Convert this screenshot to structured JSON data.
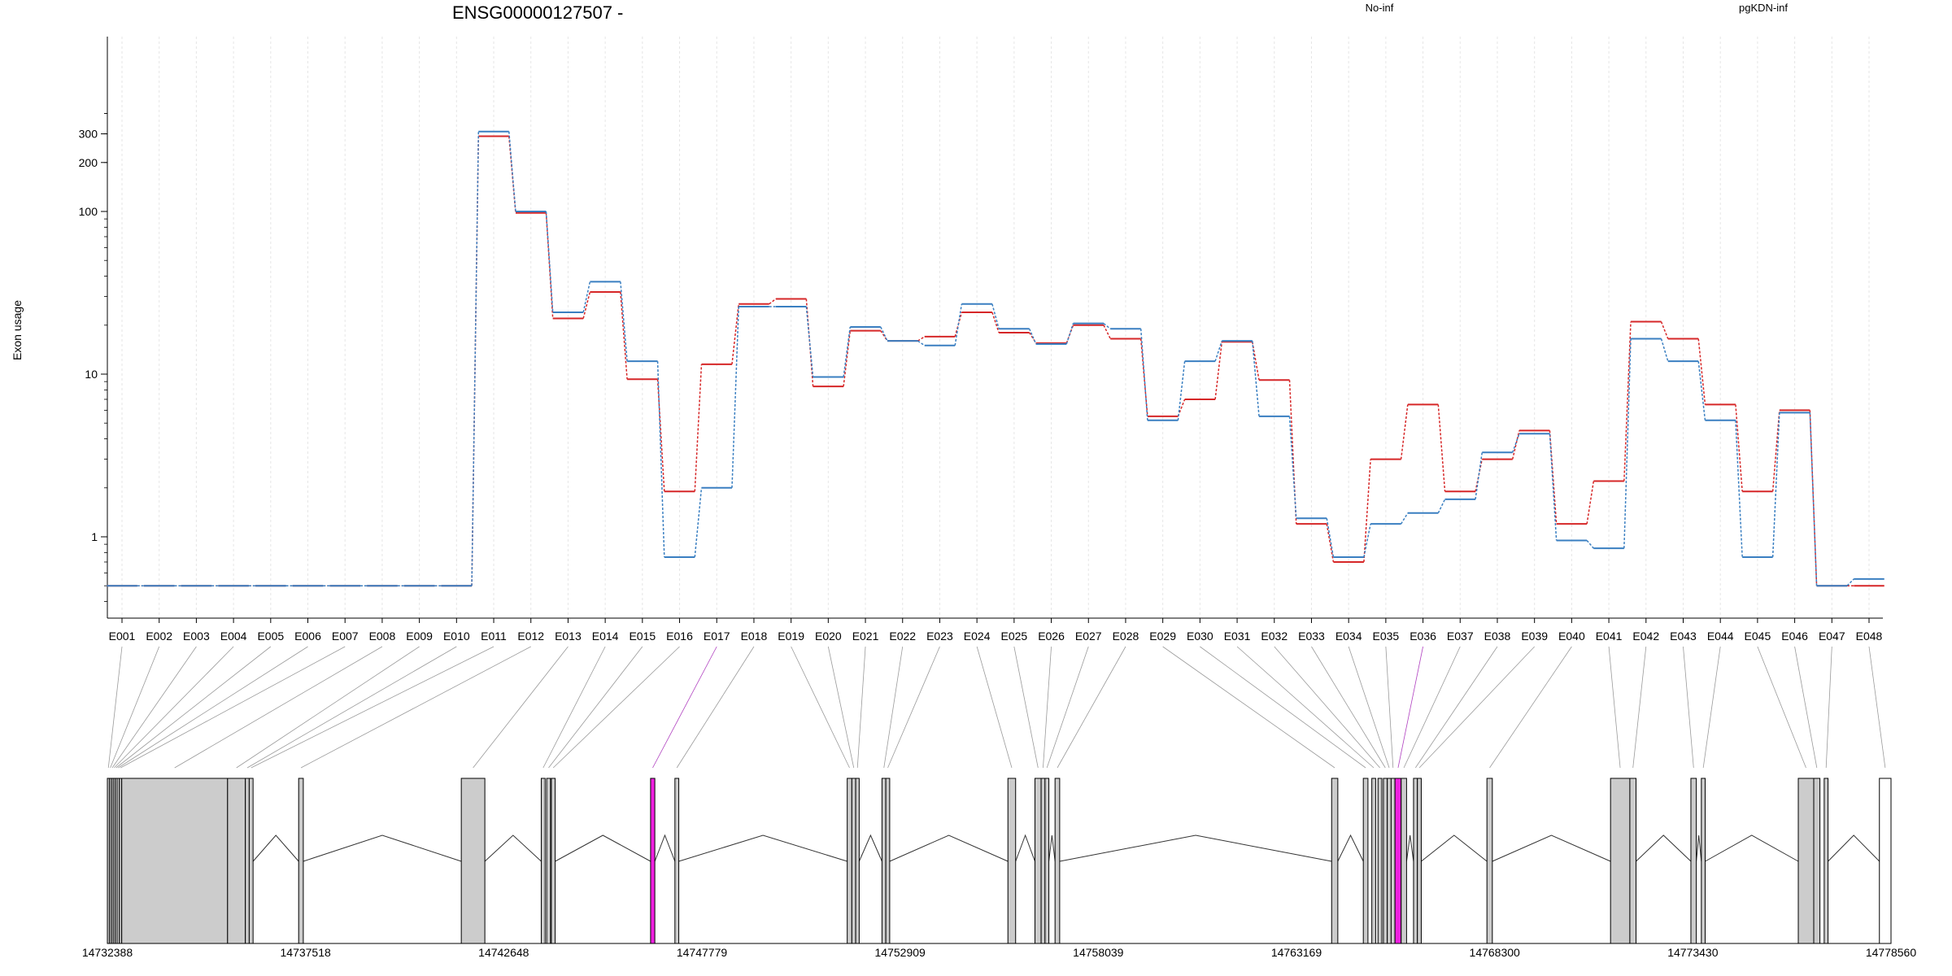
{
  "chart_data": {
    "type": "line",
    "title": "ENSG00000127507 -",
    "ylabel": "Exon usage",
    "xlabel": "",
    "y_scale": "log",
    "y_ticks": [
      1,
      10,
      100,
      200,
      300
    ],
    "legend": "top-right",
    "exon_ids": [
      "E001",
      "E002",
      "E003",
      "E004",
      "E005",
      "E006",
      "E007",
      "E008",
      "E009",
      "E010",
      "E011",
      "E012",
      "E013",
      "E014",
      "E015",
      "E016",
      "E017",
      "E018",
      "E019",
      "E020",
      "E021",
      "E022",
      "E023",
      "E024",
      "E025",
      "E026",
      "E027",
      "E028",
      "E029",
      "E030",
      "E031",
      "E032",
      "E033",
      "E034",
      "E035",
      "E036",
      "E037",
      "E038",
      "E039",
      "E040",
      "E041",
      "E042",
      "E043",
      "E044",
      "E045",
      "E046",
      "E047",
      "E048"
    ],
    "series": [
      {
        "name": "No-inf",
        "color": "#d62728",
        "values": [
          0.5,
          0.5,
          0.5,
          0.5,
          0.5,
          0.5,
          0.5,
          0.5,
          0.5,
          0.5,
          290,
          98,
          22,
          32,
          9.3,
          1.9,
          11.5,
          27,
          29,
          8.4,
          18.5,
          16,
          17,
          24,
          18,
          15.5,
          20,
          16.5,
          5.5,
          7,
          15.8,
          9.2,
          1.2,
          0.7,
          3,
          6.5,
          1.9,
          3,
          4.5,
          1.2,
          2.2,
          21,
          16.5,
          6.5,
          1.9,
          6,
          0.5,
          0.5
        ]
      },
      {
        "name": "pgKDN-inf",
        "color": "#3a7fc1",
        "values": [
          0.5,
          0.5,
          0.5,
          0.5,
          0.5,
          0.5,
          0.5,
          0.5,
          0.5,
          0.5,
          310,
          100,
          24,
          37,
          12,
          0.75,
          2,
          26,
          26,
          9.6,
          19.5,
          16,
          15,
          27,
          19,
          15.3,
          20.5,
          19,
          5.2,
          12,
          16,
          5.5,
          1.3,
          0.75,
          1.2,
          1.4,
          1.7,
          3.3,
          4.3,
          0.95,
          0.85,
          16.5,
          12,
          5.2,
          0.75,
          5.8,
          0.5,
          0.55
        ]
      }
    ],
    "gene_track": {
      "x_range": [
        14732388,
        14778560
      ],
      "x_ticks": [
        "14732388",
        "14737518",
        "14742648",
        "14747779",
        "14752909",
        "14758039",
        "14763169",
        "14768300",
        "14773430",
        "14778560"
      ],
      "highlighted_exons": [
        "E017",
        "E036"
      ],
      "exons": [
        {
          "id": "E001",
          "start": 14732388,
          "end": 14732440
        },
        {
          "id": "E002",
          "start": 14732440,
          "end": 14732490
        },
        {
          "id": "E003",
          "start": 14732490,
          "end": 14732540
        },
        {
          "id": "E004",
          "start": 14732540,
          "end": 14732590
        },
        {
          "id": "E005",
          "start": 14732590,
          "end": 14732640
        },
        {
          "id": "E006",
          "start": 14732640,
          "end": 14732700
        },
        {
          "id": "E007",
          "start": 14732700,
          "end": 14732760
        },
        {
          "id": "E008",
          "start": 14732760,
          "end": 14735500
        },
        {
          "id": "E009",
          "start": 14735500,
          "end": 14735960
        },
        {
          "id": "E010",
          "start": 14735960,
          "end": 14736060
        },
        {
          "id": "E011",
          "start": 14736060,
          "end": 14736160
        },
        {
          "id": "E012",
          "start": 14737340,
          "end": 14737460
        },
        {
          "id": "E013",
          "start": 14741550,
          "end": 14742160
        },
        {
          "id": "E014",
          "start": 14743620,
          "end": 14743720
        },
        {
          "id": "E015",
          "start": 14743760,
          "end": 14743860
        },
        {
          "id": "E016",
          "start": 14743880,
          "end": 14743980
        },
        {
          "id": "E017",
          "start": 14746450,
          "end": 14746560
        },
        {
          "id": "E018",
          "start": 14747080,
          "end": 14747180
        },
        {
          "id": "E019",
          "start": 14751540,
          "end": 14751660
        },
        {
          "id": "E020",
          "start": 14751660,
          "end": 14751760
        },
        {
          "id": "E021",
          "start": 14751760,
          "end": 14751850
        },
        {
          "id": "E022",
          "start": 14752440,
          "end": 14752540
        },
        {
          "id": "E023",
          "start": 14752540,
          "end": 14752640
        },
        {
          "id": "E024",
          "start": 14755700,
          "end": 14755900
        },
        {
          "id": "E025",
          "start": 14756400,
          "end": 14756560
        },
        {
          "id": "E026",
          "start": 14756560,
          "end": 14756660
        },
        {
          "id": "E027",
          "start": 14756660,
          "end": 14756760
        },
        {
          "id": "E028",
          "start": 14756920,
          "end": 14757040
        },
        {
          "id": "E029",
          "start": 14764080,
          "end": 14764240
        },
        {
          "id": "E030",
          "start": 14764900,
          "end": 14765020
        },
        {
          "id": "E031",
          "start": 14765120,
          "end": 14765220
        },
        {
          "id": "E032",
          "start": 14765280,
          "end": 14765380
        },
        {
          "id": "E033",
          "start": 14765420,
          "end": 14765520
        },
        {
          "id": "E034",
          "start": 14765520,
          "end": 14765620
        },
        {
          "id": "E035",
          "start": 14765620,
          "end": 14765720
        },
        {
          "id": "E036",
          "start": 14765720,
          "end": 14765880
        },
        {
          "id": "E037",
          "start": 14765880,
          "end": 14766020
        },
        {
          "id": "E038",
          "start": 14766200,
          "end": 14766300
        },
        {
          "id": "E039",
          "start": 14766300,
          "end": 14766400
        },
        {
          "id": "E040",
          "start": 14768100,
          "end": 14768240
        },
        {
          "id": "E041",
          "start": 14771300,
          "end": 14771800
        },
        {
          "id": "E042",
          "start": 14771800,
          "end": 14771960
        },
        {
          "id": "E043",
          "start": 14773380,
          "end": 14773520
        },
        {
          "id": "E044",
          "start": 14773650,
          "end": 14773750
        },
        {
          "id": "E045",
          "start": 14776160,
          "end": 14776560
        },
        {
          "id": "E046",
          "start": 14776560,
          "end": 14776720
        },
        {
          "id": "E047",
          "start": 14776830,
          "end": 14776930
        },
        {
          "id": "E048",
          "start": 14778260,
          "end": 14778560
        }
      ]
    }
  }
}
